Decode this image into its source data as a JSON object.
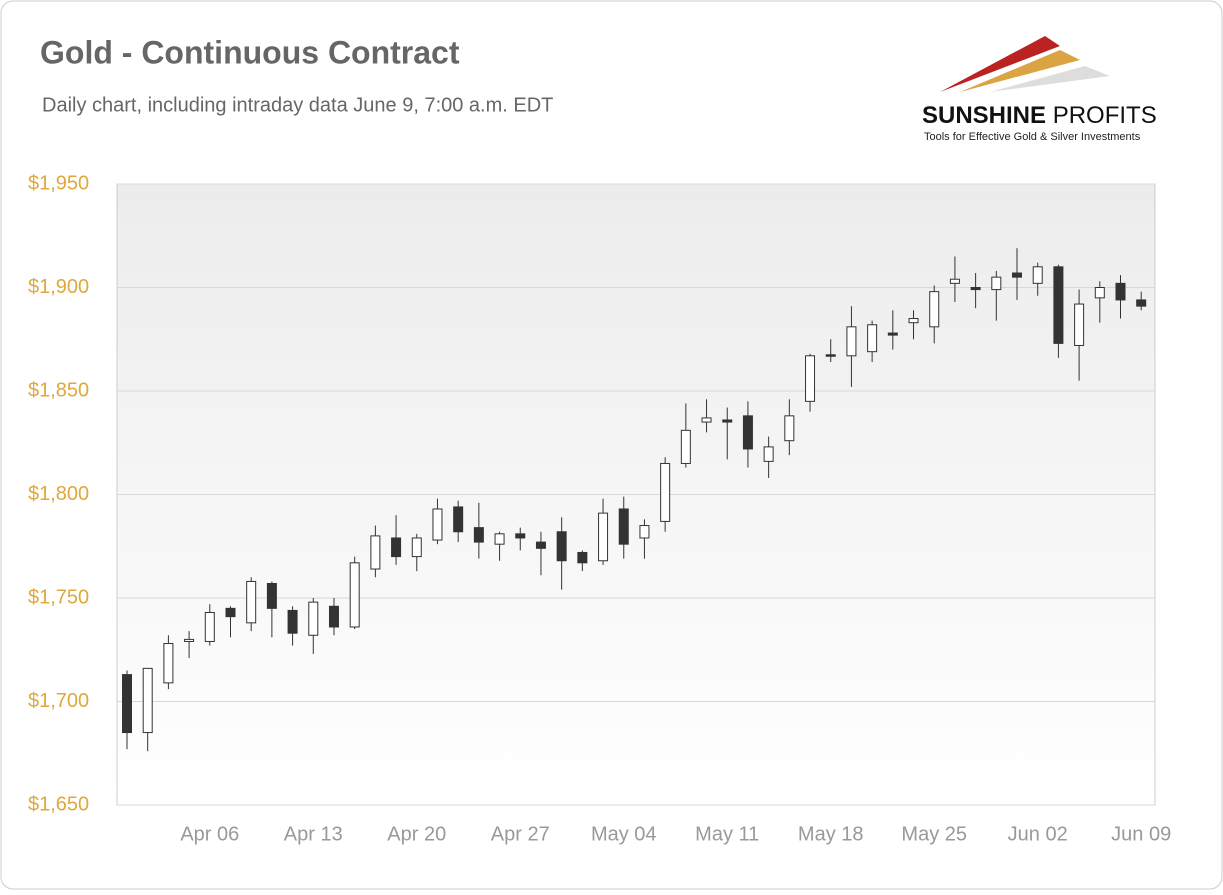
{
  "chart_data": {
    "type": "candlestick",
    "title": "Gold - Continuous Contract",
    "subtitle": "Daily chart, including intraday data June 9, 7:00 a.m. EDT",
    "categories": [
      null,
      null,
      null,
      null,
      "Apr 06",
      null,
      null,
      null,
      null,
      "Apr 13",
      null,
      null,
      null,
      null,
      "Apr 20",
      null,
      null,
      null,
      null,
      "Apr 27",
      null,
      null,
      null,
      null,
      "May 04",
      null,
      null,
      null,
      null,
      "May 11",
      null,
      null,
      null,
      null,
      "May 18",
      null,
      null,
      null,
      null,
      "May 25",
      null,
      null,
      null,
      null,
      "Jun 02",
      null,
      null,
      null,
      null,
      "Jun 09"
    ],
    "open": [
      1713,
      1685,
      1709,
      1729,
      1729,
      1745,
      1738,
      1757,
      1744,
      1732,
      1746,
      1736,
      1764,
      1779,
      1770,
      1778,
      1794,
      1784,
      1776,
      1781,
      1777,
      1782,
      1772,
      1768,
      1793,
      1779,
      1787,
      1815,
      1835,
      1836,
      1838,
      1816,
      1826,
      1845,
      1867.5,
      1867,
      1869,
      1878,
      1883,
      1881,
      1902,
      1900,
      1899,
      1907,
      1902,
      1910,
      1872,
      1895,
      1902,
      1894
    ],
    "high": [
      1715,
      1716,
      1732,
      1734,
      1747,
      1746,
      1760,
      1758,
      1746,
      1750,
      1750,
      1770,
      1785,
      1790,
      1781,
      1798,
      1797,
      1796,
      1782,
      1784,
      1782,
      1789,
      1773,
      1798,
      1799,
      1788,
      1818,
      1844,
      1846,
      1842,
      1845,
      1828,
      1846,
      1868,
      1875,
      1891,
      1884,
      1889,
      1889,
      1901,
      1915,
      1907,
      1908,
      1919,
      1912,
      1911,
      1899,
      1903,
      1906,
      1898
    ],
    "low": [
      1677,
      1676,
      1706,
      1721,
      1727,
      1731,
      1734,
      1731,
      1727,
      1723,
      1732,
      1735,
      1760,
      1766,
      1763,
      1776,
      1777,
      1769,
      1768,
      1773,
      1761,
      1754,
      1763,
      1766,
      1769,
      1769,
      1782,
      1813,
      1830,
      1817,
      1813,
      1808,
      1819,
      1840,
      1864,
      1852,
      1864,
      1870,
      1875,
      1873,
      1893,
      1890,
      1884,
      1894,
      1896,
      1866,
      1855,
      1883,
      1885,
      1889
    ],
    "close": [
      1685,
      1716,
      1728,
      1730,
      1743,
      1741,
      1758,
      1745,
      1733,
      1748,
      1736,
      1767,
      1780,
      1770,
      1779,
      1793,
      1782,
      1777,
      1781,
      1779,
      1774,
      1768,
      1767,
      1791,
      1776,
      1785,
      1815,
      1831,
      1837,
      1835,
      1822,
      1823,
      1838,
      1867,
      1867,
      1881,
      1882,
      1877,
      1885,
      1898,
      1904,
      1899,
      1905,
      1905,
      1910,
      1873,
      1892,
      1900,
      1894,
      1891
    ],
    "up_color": "#ffffff",
    "down_color": "#333333",
    "ylim": [
      1650,
      1950
    ],
    "yticks": [
      {
        "value": 1650,
        "label": "$1,650"
      },
      {
        "value": 1700,
        "label": "$1,700"
      },
      {
        "value": 1750,
        "label": "$1,750"
      },
      {
        "value": 1800,
        "label": "$1,800"
      },
      {
        "value": 1850,
        "label": "$1,850"
      },
      {
        "value": 1900,
        "label": "$1,900"
      },
      {
        "value": 1950,
        "label": "$1,950"
      }
    ],
    "grid": true
  },
  "logo": {
    "name_bold": "SUNSHINE",
    "name_rest": "PROFITS",
    "tagline": "Tools for Effective Gold & Silver Investments"
  }
}
